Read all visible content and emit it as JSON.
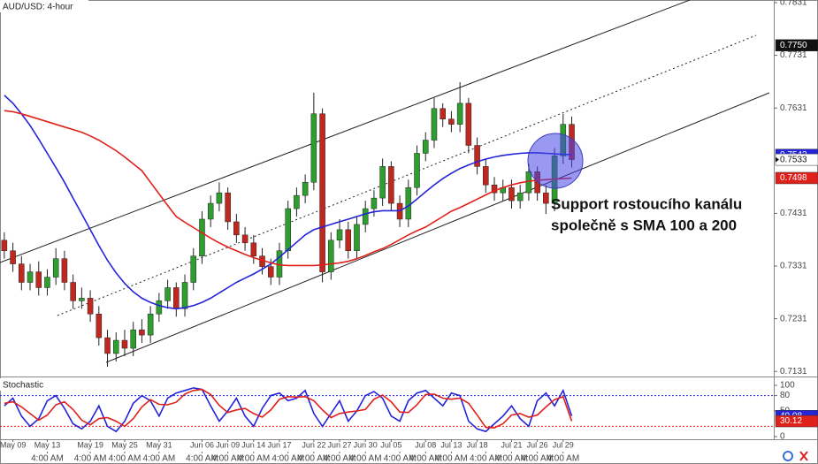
{
  "chart_data": [
    {
      "type": "candlestick",
      "title": "AUD/USD: 4-hour",
      "annotation": [
        "Support rostoucího kanálu",
        "společně s SMA 100 a 200"
      ],
      "up_color": "#2e9e2e",
      "down_color": "#c0271f",
      "open": [
        0.738,
        0.736,
        0.7335,
        0.73,
        0.732,
        0.729,
        0.731,
        0.7345,
        0.73,
        0.7265,
        0.727,
        0.724,
        0.7195,
        0.7165,
        0.719,
        0.7175,
        0.721,
        0.72,
        0.724,
        0.7265,
        0.729,
        0.725,
        0.73,
        0.735,
        0.742,
        0.745,
        0.747,
        0.7415,
        0.739,
        0.7375,
        0.735,
        0.733,
        0.731,
        0.736,
        0.744,
        0.7465,
        0.749,
        0.762,
        0.732,
        0.738,
        0.74,
        0.736,
        0.741,
        0.744,
        0.746,
        0.752,
        0.745,
        0.742,
        0.748,
        0.7545,
        0.757,
        0.763,
        0.761,
        0.76,
        0.764,
        0.756,
        0.752,
        0.7485,
        0.747,
        0.748,
        0.7455,
        0.747,
        0.751,
        0.747,
        0.745,
        0.754,
        0.76
      ],
      "high": [
        0.7395,
        0.7375,
        0.735,
        0.7335,
        0.734,
        0.7325,
        0.7365,
        0.736,
        0.7315,
        0.729,
        0.7285,
        0.7255,
        0.721,
        0.7205,
        0.721,
        0.7225,
        0.723,
        0.7255,
        0.728,
        0.7305,
        0.73,
        0.7315,
        0.7365,
        0.7435,
        0.7465,
        0.749,
        0.748,
        0.743,
        0.7405,
        0.739,
        0.7365,
        0.7345,
        0.7375,
        0.7455,
        0.748,
        0.7505,
        0.766,
        0.763,
        0.7395,
        0.742,
        0.7415,
        0.7425,
        0.7455,
        0.7475,
        0.7535,
        0.753,
        0.7465,
        0.7495,
        0.756,
        0.7585,
        0.765,
        0.764,
        0.7625,
        0.768,
        0.765,
        0.7575,
        0.7535,
        0.75,
        0.7495,
        0.7495,
        0.7485,
        0.7525,
        0.752,
        0.7485,
        0.7555,
        0.762,
        0.7615
      ],
      "low": [
        0.7345,
        0.732,
        0.7285,
        0.7285,
        0.7275,
        0.7275,
        0.7295,
        0.7285,
        0.725,
        0.725,
        0.7225,
        0.718,
        0.714,
        0.715,
        0.716,
        0.716,
        0.7185,
        0.7185,
        0.7225,
        0.725,
        0.7235,
        0.7235,
        0.7285,
        0.7335,
        0.7405,
        0.7435,
        0.74,
        0.7375,
        0.736,
        0.7335,
        0.7315,
        0.7295,
        0.7295,
        0.7345,
        0.7425,
        0.745,
        0.7475,
        0.73,
        0.7305,
        0.7365,
        0.7345,
        0.7345,
        0.7395,
        0.7425,
        0.7445,
        0.7435,
        0.7405,
        0.7405,
        0.7465,
        0.753,
        0.7555,
        0.7595,
        0.7585,
        0.7585,
        0.7545,
        0.7505,
        0.747,
        0.7455,
        0.7455,
        0.744,
        0.744,
        0.7455,
        0.7455,
        0.743,
        0.7435,
        0.7525,
        0.7518
      ],
      "close": [
        0.736,
        0.7335,
        0.73,
        0.732,
        0.729,
        0.731,
        0.7345,
        0.73,
        0.7265,
        0.727,
        0.724,
        0.7195,
        0.7165,
        0.719,
        0.7175,
        0.721,
        0.72,
        0.724,
        0.7265,
        0.729,
        0.725,
        0.73,
        0.735,
        0.742,
        0.745,
        0.747,
        0.7415,
        0.739,
        0.7375,
        0.735,
        0.733,
        0.731,
        0.736,
        0.744,
        0.7465,
        0.749,
        0.762,
        0.732,
        0.738,
        0.74,
        0.736,
        0.741,
        0.744,
        0.746,
        0.752,
        0.745,
        0.742,
        0.748,
        0.7545,
        0.757,
        0.763,
        0.761,
        0.76,
        0.764,
        0.756,
        0.752,
        0.7485,
        0.747,
        0.748,
        0.7455,
        0.747,
        0.751,
        0.747,
        0.745,
        0.754,
        0.76,
        0.7533
      ],
      "series": [
        {
          "color": "#2424d8",
          "values": [
            0.7655,
            0.764,
            0.762,
            0.7598,
            0.7572,
            0.7545,
            0.7518,
            0.749,
            0.746,
            0.743,
            0.74,
            0.737,
            0.7342,
            0.7318,
            0.7298,
            0.7282,
            0.727,
            0.7262,
            0.7256,
            0.7252,
            0.725,
            0.7252,
            0.7256,
            0.7262,
            0.727,
            0.728,
            0.729,
            0.73,
            0.7308,
            0.7316,
            0.7325,
            0.7335,
            0.7348,
            0.7362,
            0.7376,
            0.739,
            0.74,
            0.7405,
            0.741,
            0.7415,
            0.742,
            0.7425,
            0.743,
            0.7434,
            0.7436,
            0.7436,
            0.7436,
            0.7445,
            0.7458,
            0.7472,
            0.7485,
            0.7497,
            0.7507,
            0.7516,
            0.7523,
            0.7529,
            0.7534,
            0.7538,
            0.7541,
            0.7543,
            0.7545,
            0.7546,
            0.7546,
            0.7545,
            0.7544,
            0.7543,
            0.7542
          ]
        },
        {
          "color": "#e0201b",
          "values": [
            0.7626,
            0.7624,
            0.762,
            0.7615,
            0.761,
            0.7605,
            0.76,
            0.7595,
            0.759,
            0.7585,
            0.7578,
            0.757,
            0.756,
            0.755,
            0.7538,
            0.7525,
            0.7512,
            0.749,
            0.7468,
            0.7446,
            0.7425,
            0.7414,
            0.7404,
            0.7394,
            0.7384,
            0.7375,
            0.7367,
            0.736,
            0.7353,
            0.7347,
            0.7342,
            0.7337,
            0.7333,
            0.7332,
            0.7332,
            0.7332,
            0.7332,
            0.7333,
            0.7335,
            0.7337,
            0.734,
            0.7345,
            0.7351,
            0.7358,
            0.7364,
            0.7372,
            0.7381,
            0.739,
            0.7398,
            0.7405,
            0.7415,
            0.7425,
            0.7435,
            0.7442,
            0.745,
            0.7458,
            0.7466,
            0.7474,
            0.748,
            0.7485,
            0.7489,
            0.7492,
            0.7494,
            0.7495,
            0.7496,
            0.7497,
            0.7498
          ]
        }
      ],
      "xlim": [
        -0.5,
        89.5
      ],
      "ylim": [
        0.7123,
        0.7836
      ],
      "yticks": [
        0.7831,
        0.7731,
        0.7631,
        0.7431,
        0.7331,
        0.7231,
        0.7131
      ],
      "price_marker": {
        "value": 0.775,
        "label": "0.7750"
      },
      "xticks": [
        {
          "value": 1,
          "label": "May 09"
        },
        {
          "value": 5,
          "label": "May 13"
        },
        {
          "value": 10,
          "label": "May 19"
        },
        {
          "value": 14,
          "label": "May 25"
        },
        {
          "value": 18,
          "label": "May 31"
        },
        {
          "value": 23,
          "label": "Jun 06"
        },
        {
          "value": 26,
          "label": "Jun 09"
        },
        {
          "value": 29,
          "label": "Jun 14"
        },
        {
          "value": 32,
          "label": "Jun 17"
        },
        {
          "value": 36,
          "label": "Jun 22"
        },
        {
          "value": 39,
          "label": "Jun 27"
        },
        {
          "value": 42,
          "label": "Jun 30"
        },
        {
          "value": 45,
          "label": "Jul 05"
        },
        {
          "value": 49,
          "label": "Jul 08"
        },
        {
          "value": 52,
          "label": "Jul 13"
        },
        {
          "value": 55,
          "label": "Jul 18"
        },
        {
          "value": 59,
          "label": "Jul 21"
        },
        {
          "value": 62,
          "label": "Jul 26"
        },
        {
          "value": 65,
          "label": "Jul 29"
        }
      ],
      "xticks_time": [
        {
          "value": 5,
          "label": "4:00 AM"
        },
        {
          "value": 10,
          "label": "4:00 AM"
        },
        {
          "value": 14,
          "label": "4:00 AM"
        },
        {
          "value": 18,
          "label": "4:00 AM"
        },
        {
          "value": 23,
          "label": "4:00 AM"
        },
        {
          "value": 26,
          "label": "4:00 AM"
        },
        {
          "value": 29,
          "label": "4:00 AM"
        },
        {
          "value": 33,
          "label": "4:00 AM"
        },
        {
          "value": 36,
          "label": "4:00 AM"
        },
        {
          "value": 39,
          "label": "4:00 AM"
        },
        {
          "value": 42,
          "label": "4:00 AM"
        },
        {
          "value": 46,
          "label": "4:00 AM"
        },
        {
          "value": 49,
          "label": "4:00 AM"
        },
        {
          "value": 52,
          "label": "4:00 AM"
        },
        {
          "value": 56,
          "label": "4:00 AM"
        },
        {
          "value": 59,
          "label": "4:00 AM"
        },
        {
          "value": 62,
          "label": "4:00 AM"
        },
        {
          "value": 65,
          "label": "4:00 AM"
        }
      ]
    },
    {
      "type": "stochastic",
      "title": "Stochastic",
      "series": [
        {
          "color": "#2424d8",
          "values": [
            60,
            75,
            40,
            20,
            35,
            70,
            80,
            55,
            25,
            15,
            30,
            60,
            20,
            10,
            30,
            65,
            80,
            70,
            40,
            75,
            85,
            90,
            95,
            92,
            60,
            30,
            50,
            75,
            40,
            20,
            55,
            80,
            85,
            70,
            75,
            90,
            45,
            20,
            45,
            70,
            30,
            50,
            80,
            88,
            75,
            40,
            30,
            70,
            85,
            90,
            75,
            60,
            85,
            80,
            30,
            15,
            10,
            25,
            40,
            60,
            35,
            20,
            70,
            85,
            60,
            90,
            40.08
          ]
        },
        {
          "color": "#e0201b",
          "values": [
            65,
            68,
            58,
            45,
            32,
            42,
            62,
            68,
            53,
            32,
            23,
            35,
            37,
            30,
            20,
            35,
            58,
            72,
            63,
            62,
            67,
            83,
            90,
            92,
            82,
            61,
            47,
            52,
            55,
            45,
            38,
            52,
            73,
            78,
            77,
            78,
            70,
            52,
            37,
            45,
            48,
            50,
            53,
            73,
            81,
            68,
            48,
            47,
            62,
            82,
            83,
            75,
            73,
            75,
            65,
            42,
            18,
            17,
            25,
            42,
            45,
            38,
            42,
            58,
            72,
            78,
            30.12
          ]
        }
      ],
      "ylim": [
        0,
        100
      ],
      "yticks": [
        100,
        80,
        50,
        0
      ],
      "levels": [
        {
          "value": 80,
          "color": "#2424d8"
        },
        {
          "value": 20,
          "color": "#e0201b"
        }
      ]
    }
  ]
}
